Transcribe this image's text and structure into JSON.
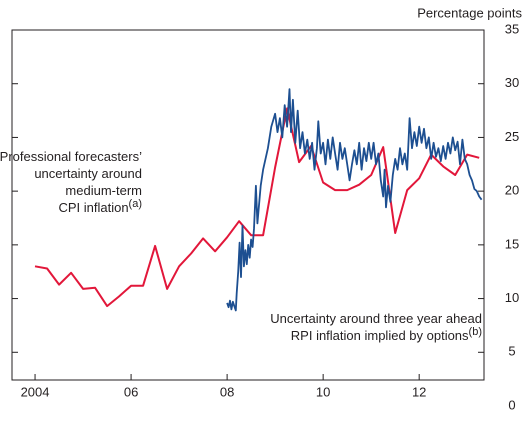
{
  "chart_data": {
    "type": "line",
    "y_axis_label": "Percentage points",
    "xlim": [
      2003.52,
      2013.35
    ],
    "xticks": [
      {
        "value": 2004,
        "label": "2004"
      },
      {
        "value": 2006,
        "label": "06"
      },
      {
        "value": 2008,
        "label": "08"
      },
      {
        "value": 2010,
        "label": "10"
      },
      {
        "value": 2012,
        "label": "12"
      }
    ],
    "ylim": [
      0,
      35
    ],
    "yticks": [
      0,
      5,
      10,
      15,
      20,
      25,
      30,
      35
    ],
    "grid": false,
    "series": [
      {
        "color": "#e2173a",
        "x": [
          2004.0,
          2004.25,
          2004.5,
          2004.75,
          2005.0,
          2005.25,
          2005.5,
          2005.75,
          2006.0,
          2006.25,
          2006.5,
          2006.75,
          2007.0,
          2007.25,
          2007.5,
          2007.75,
          2008.0,
          2008.25,
          2008.5,
          2008.75,
          2009.0,
          2009.25,
          2009.5,
          2009.75,
          2010.0,
          2010.25,
          2010.5,
          2010.75,
          2011.0,
          2011.25,
          2011.5,
          2011.75,
          2012.0,
          2012.25,
          2012.5,
          2012.75,
          2013.0,
          2013.25
        ],
        "values": [
          13.0,
          12.8,
          11.3,
          12.4,
          10.9,
          11.0,
          9.3,
          10.2,
          11.2,
          11.2,
          14.9,
          10.9,
          13.0,
          14.2,
          15.6,
          14.4,
          15.7,
          17.2,
          15.9,
          15.9,
          22.2,
          27.7,
          22.7,
          24.2,
          20.8,
          20.1,
          20.1,
          20.6,
          21.5,
          24.1,
          16.1,
          20.1,
          21.2,
          23.4,
          22.3,
          21.5,
          23.4,
          23.1
        ]
      },
      {
        "color": "#1d4f91",
        "x": [
          2008.0,
          2008.03,
          2008.06,
          2008.09,
          2008.12,
          2008.15,
          2008.18,
          2008.2,
          2008.23,
          2008.26,
          2008.29,
          2008.32,
          2008.35,
          2008.38,
          2008.41,
          2008.44,
          2008.47,
          2008.5,
          2008.53,
          2008.56,
          2008.6,
          2008.63,
          2008.7,
          2008.75,
          2008.85,
          2008.92,
          2009.0,
          2009.05,
          2009.1,
          2009.15,
          2009.2,
          2009.25,
          2009.3,
          2009.33,
          2009.37,
          2009.42,
          2009.47,
          2009.52,
          2009.57,
          2009.62,
          2009.67,
          2009.72,
          2009.77,
          2009.82,
          2009.87,
          2009.9,
          2009.95,
          2010.0,
          2010.05,
          2010.1,
          2010.15,
          2010.2,
          2010.25,
          2010.3,
          2010.35,
          2010.4,
          2010.45,
          2010.5,
          2010.55,
          2010.6,
          2010.65,
          2010.7,
          2010.75,
          2010.8,
          2010.85,
          2010.9,
          2010.95,
          2011.0,
          2011.05,
          2011.1,
          2011.15,
          2011.2,
          2011.25,
          2011.28,
          2011.31,
          2011.35,
          2011.4,
          2011.45,
          2011.5,
          2011.55,
          2011.6,
          2011.65,
          2011.7,
          2011.75,
          2011.8,
          2011.85,
          2011.9,
          2011.95,
          2012.0,
          2012.05,
          2012.1,
          2012.15,
          2012.2,
          2012.25,
          2012.3,
          2012.35,
          2012.4,
          2012.45,
          2012.5,
          2012.55,
          2012.6,
          2012.65,
          2012.7,
          2012.75,
          2012.8,
          2012.85,
          2012.9,
          2012.95,
          2013.0,
          2013.05,
          2013.1,
          2013.15,
          2013.2,
          2013.25,
          2013.3
        ],
        "values": [
          9.6,
          9.2,
          9.8,
          9.0,
          9.7,
          9.3,
          8.9,
          10.5,
          12.5,
          15.2,
          12.0,
          16.8,
          13.0,
          14.5,
          13.2,
          15.0,
          13.8,
          15.5,
          14.8,
          16.5,
          20.5,
          17.0,
          20.5,
          22.0,
          24.0,
          26.0,
          27.2,
          25.5,
          26.8,
          25.0,
          28.0,
          26.0,
          29.5,
          25.5,
          28.5,
          24.5,
          27.5,
          24.0,
          25.5,
          23.5,
          24.8,
          23.0,
          24.5,
          22.0,
          24.0,
          26.5,
          23.5,
          24.5,
          22.5,
          24.8,
          23.0,
          25.0,
          23.5,
          22.0,
          24.5,
          23.0,
          24.0,
          22.5,
          21.0,
          22.5,
          23.8,
          22.5,
          24.5,
          22.0,
          24.0,
          22.8,
          24.5,
          23.0,
          24.5,
          22.5,
          23.5,
          21.0,
          19.5,
          22.0,
          18.5,
          20.5,
          19.0,
          21.5,
          23.0,
          22.0,
          24.0,
          22.5,
          23.5,
          22.0,
          26.8,
          24.0,
          25.5,
          24.2,
          26.0,
          24.5,
          25.8,
          24.0,
          25.0,
          23.0,
          24.5,
          23.2,
          24.0,
          22.8,
          24.2,
          23.0,
          24.5,
          23.5,
          25.0,
          23.8,
          24.6,
          22.5,
          24.8,
          23.0,
          22.5,
          21.5,
          21.0,
          20.2,
          20.0,
          19.5,
          19.2
        ]
      }
    ],
    "annotations": [
      {
        "lines": [
          "Professional forecasters’",
          "uncertainty around",
          "medium-term",
          "CPI inflation"
        ],
        "note": "(a)"
      },
      {
        "lines": [
          "Uncertainty around three year ahead",
          "RPI inflation implied by options"
        ],
        "note": "(b)"
      }
    ]
  }
}
